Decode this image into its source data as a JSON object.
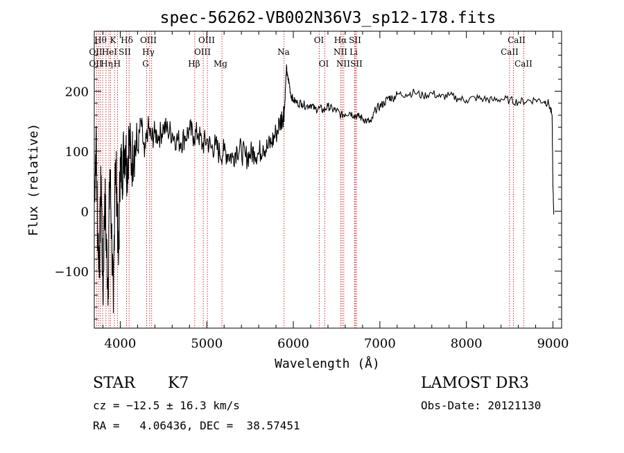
{
  "chart_data": {
    "type": "line",
    "title": "spec-56262-VB002N36V3_sp12-178.fits",
    "xlabel": "Wavelength (Å)",
    "ylabel": "Flux (relative)",
    "xlim": [
      3700,
      9100
    ],
    "ylim": [
      -195,
      300
    ],
    "x_ticks": [
      4000,
      5000,
      6000,
      7000,
      8000,
      9000
    ],
    "y_ticks": [
      -100,
      0,
      100,
      200
    ],
    "series": [
      {
        "name": "flux",
        "x": [
          3700,
          3720,
          3740,
          3760,
          3780,
          3800,
          3820,
          3840,
          3860,
          3880,
          3900,
          3920,
          3940,
          3960,
          3980,
          4000,
          4020,
          4040,
          4060,
          4080,
          4100,
          4130,
          4160,
          4200,
          4240,
          4280,
          4320,
          4360,
          4400,
          4450,
          4500,
          4550,
          4600,
          4650,
          4700,
          4750,
          4800,
          4850,
          4900,
          4950,
          5000,
          5050,
          5100,
          5150,
          5200,
          5250,
          5300,
          5350,
          5400,
          5450,
          5500,
          5550,
          5600,
          5650,
          5700,
          5750,
          5800,
          5850,
          5880,
          5900,
          5920,
          5930,
          5950,
          5970,
          6000,
          6050,
          6100,
          6150,
          6200,
          6250,
          6300,
          6350,
          6400,
          6450,
          6500,
          6550,
          6600,
          6650,
          6700,
          6750,
          6800,
          6850,
          6900,
          6950,
          7000,
          7050,
          7100,
          7150,
          7200,
          7300,
          7400,
          7500,
          7600,
          7700,
          7800,
          7900,
          8000,
          8100,
          8200,
          8300,
          8400,
          8500,
          8600,
          8700,
          8800,
          8900,
          8950,
          8990,
          9000,
          9010
        ],
        "values": [
          20,
          120,
          -40,
          -80,
          60,
          -150,
          30,
          -60,
          -120,
          70,
          -30,
          -170,
          80,
          40,
          -90,
          90,
          60,
          100,
          110,
          70,
          120,
          80,
          110,
          100,
          150,
          90,
          140,
          120,
          130,
          125,
          140,
          135,
          130,
          120,
          115,
          125,
          135,
          125,
          130,
          110,
          120,
          105,
          110,
          95,
          100,
          95,
          90,
          105,
          100,
          90,
          95,
          100,
          95,
          110,
          105,
          115,
          130,
          150,
          160,
          175,
          240,
          225,
          215,
          195,
          185,
          180,
          180,
          175,
          178,
          170,
          172,
          168,
          175,
          170,
          168,
          160,
          162,
          165,
          160,
          158,
          155,
          150,
          148,
          170,
          175,
          180,
          190,
          188,
          195,
          195,
          198,
          192,
          197,
          190,
          193,
          188,
          185,
          189,
          187,
          185,
          187,
          185,
          182,
          184,
          186,
          183,
          180,
          160,
          40,
          -5
        ]
      }
    ],
    "line_labels": {
      "row1": [
        "Hθ",
        "K",
        "Hδ",
        "OIII",
        "OIII",
        "OI",
        "Hα",
        "SII",
        "CaII"
      ],
      "row2": [
        "OII",
        "HeI",
        "SII",
        "Hγ",
        "OIII",
        "Na",
        "NII",
        "Li",
        "CaII"
      ],
      "row3": [
        "OII",
        "Hη",
        "H",
        "G",
        "Hβ",
        "Mg",
        "OI",
        "NII",
        "SII",
        "CaII"
      ]
    },
    "object_class": "STAR",
    "subclass": "K7",
    "survey": "LAMOST DR3",
    "redshift_text": "cz = −12.5 ± 16.3 km/s",
    "obs_date": "Obs-Date: 20121130",
    "coords_text": "RA =   4.06436, DEC =  38.57451"
  }
}
